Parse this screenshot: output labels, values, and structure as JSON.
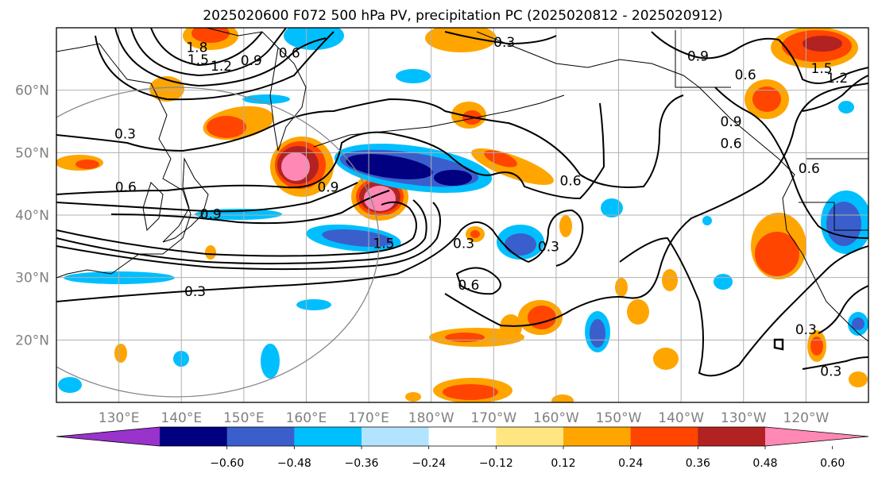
{
  "title": "2025020600 F072 500 hPa PV, precipitation PC (2025020812 - 2025020912)",
  "colors": {
    "neg_extreme": "#9933cc",
    "n060": "#000080",
    "n048": "#3a5fcd",
    "n036": "#00bfff",
    "n024": "#b2e4ff",
    "zero": "#ffffff",
    "p012": "#ffe680",
    "p024": "#ffa500",
    "p036": "#ff4500",
    "p048": "#b22222",
    "pos_extreme": "#ff88b4",
    "contour": "#000000",
    "grid": "#b0b0b0",
    "coast": "#000000"
  },
  "chart_data": {
    "type": "map",
    "projection": "PlateCarree",
    "extent": {
      "lon": [
        120,
        250
      ],
      "lat": [
        10,
        70
      ]
    },
    "longitude_ticks": [
      {
        "lon": 130,
        "label": "130°E"
      },
      {
        "lon": 140,
        "label": "140°E"
      },
      {
        "lon": 150,
        "label": "150°E"
      },
      {
        "lon": 160,
        "label": "160°E"
      },
      {
        "lon": 170,
        "label": "170°E"
      },
      {
        "lon": 180,
        "label": "180°W"
      },
      {
        "lon": 190,
        "label": "170°W"
      },
      {
        "lon": 200,
        "label": "160°W"
      },
      {
        "lon": 210,
        "label": "150°W"
      },
      {
        "lon": 220,
        "label": "140°W"
      },
      {
        "lon": 230,
        "label": "130°W"
      },
      {
        "lon": 240,
        "label": "120°W"
      }
    ],
    "latitude_ticks": [
      {
        "lat": 20,
        "label": "20°N"
      },
      {
        "lat": 30,
        "label": "30°N"
      },
      {
        "lat": 40,
        "label": "40°N"
      },
      {
        "lat": 50,
        "label": "50°N"
      },
      {
        "lat": 60,
        "label": "60°N"
      }
    ],
    "grid": true,
    "contour_variable": "500 hPa PV",
    "contour_labels": [
      {
        "text": "1.8",
        "lon": 142.5,
        "lat": 66.9
      },
      {
        "text": "1.5",
        "lon": 142.7,
        "lat": 64.9
      },
      {
        "text": "1.2",
        "lon": 146.4,
        "lat": 63.9
      },
      {
        "text": "0.9",
        "lon": 151.2,
        "lat": 64.8
      },
      {
        "text": "0.6",
        "lon": 157.3,
        "lat": 66.0
      },
      {
        "text": "0.3",
        "lon": 191.7,
        "lat": 67.7
      },
      {
        "text": "0.3",
        "lon": 131.0,
        "lat": 53.0
      },
      {
        "text": "0.6",
        "lon": 131.1,
        "lat": 44.5
      },
      {
        "text": "0.9",
        "lon": 144.7,
        "lat": 40.2
      },
      {
        "text": "0.9",
        "lon": 163.5,
        "lat": 44.5
      },
      {
        "text": "1.5",
        "lon": 172.4,
        "lat": 35.5
      },
      {
        "text": "0.3",
        "lon": 142.2,
        "lat": 27.8
      },
      {
        "text": "0.6",
        "lon": 202.3,
        "lat": 45.5
      },
      {
        "text": "0.3",
        "lon": 185.2,
        "lat": 35.5
      },
      {
        "text": "0.3",
        "lon": 198.8,
        "lat": 35.0
      },
      {
        "text": "0.6",
        "lon": 186.0,
        "lat": 28.8
      },
      {
        "text": "0.9",
        "lon": 222.7,
        "lat": 65.5
      },
      {
        "text": "0.6",
        "lon": 230.3,
        "lat": 62.5
      },
      {
        "text": "0.9",
        "lon": 228.0,
        "lat": 55.0
      },
      {
        "text": "0.6",
        "lon": 228.0,
        "lat": 51.5
      },
      {
        "text": "0.6",
        "lon": 240.5,
        "lat": 47.5
      },
      {
        "text": "1.5",
        "lon": 242.5,
        "lat": 63.5
      },
      {
        "text": "1.2",
        "lon": 245.0,
        "lat": 62.0
      },
      {
        "text": "0.3",
        "lon": 240.0,
        "lat": 21.7
      },
      {
        "text": "0.3",
        "lon": 244.0,
        "lat": 15.0
      }
    ],
    "shading_variable": "precipitation PC",
    "period": "2025020812 - 2025020912",
    "colorbar": {
      "orientation": "horizontal",
      "extend": "both",
      "levels": [
        -0.6,
        -0.48,
        -0.36,
        -0.24,
        -0.12,
        0.12,
        0.24,
        0.36,
        0.48,
        0.6
      ],
      "tick_labels": [
        "−0.60",
        "−0.48",
        "−0.36",
        "−0.24",
        "−0.12",
        "0.12",
        "0.24",
        "0.36",
        "0.48",
        "0.60"
      ]
    }
  }
}
